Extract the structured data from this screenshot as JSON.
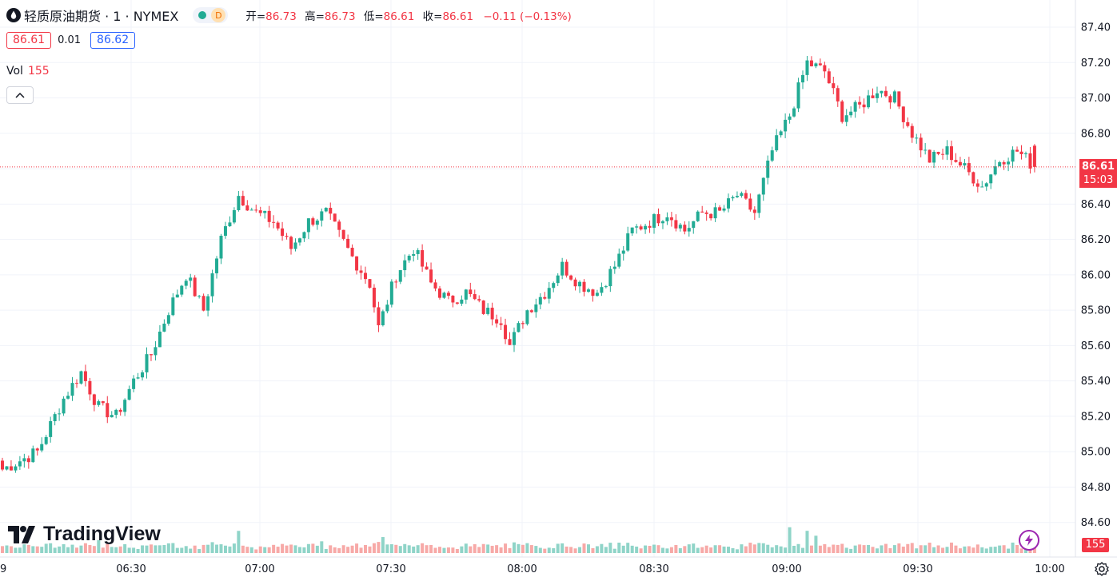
{
  "header": {
    "symbol_title": "轻质原油期货 · 1 · NYMEX",
    "timeframe_badge": "D",
    "ohlc": {
      "open_label": "开=",
      "open": "86.73",
      "high_label": "高=",
      "high": "86.73",
      "low_label": "低=",
      "low": "86.61",
      "close_label": "收=",
      "close": "86.61",
      "change": "−0.11 (−0.13%)"
    }
  },
  "quote": {
    "sell": "86.61",
    "spread": "0.01",
    "buy": "86.62"
  },
  "volume_legend": {
    "label": "Vol",
    "value": "155"
  },
  "brand": {
    "name": "TradingView"
  },
  "price_tag": {
    "price": "86.61",
    "countdown": "15:03"
  },
  "volume_tag": "155",
  "colors": {
    "up": "#22ab94",
    "down": "#f23645",
    "up_vol": "#8fd4c8",
    "down_vol": "#f7a9a7",
    "grid": "#f0f3fa"
  },
  "icons": {
    "flash": "lightning-icon",
    "settings": "gear-icon",
    "collapse": "chevron-up-icon"
  },
  "chart_data": {
    "type": "candlestick",
    "y_ticks": [
      "87.40",
      "87.20",
      "87.00",
      "86.80",
      "86.60",
      "86.40",
      "86.20",
      "86.00",
      "85.80",
      "85.60",
      "85.40",
      "85.20",
      "85.00",
      "84.80",
      "84.60"
    ],
    "y_range": [
      84.4,
      87.4
    ],
    "x_ticks": [
      "9",
      "06:30",
      "07:00",
      "07:30",
      "08:00",
      "08:30",
      "09:00",
      "09:30",
      "10:00"
    ],
    "last_price": 86.61,
    "anchors": [
      [
        0,
        84.9
      ],
      [
        8,
        85.0
      ],
      [
        14,
        85.3
      ],
      [
        18,
        85.45
      ],
      [
        22,
        85.25
      ],
      [
        26,
        85.2
      ],
      [
        30,
        85.4
      ],
      [
        34,
        85.55
      ],
      [
        38,
        85.8
      ],
      [
        42,
        86.0
      ],
      [
        46,
        85.8
      ],
      [
        50,
        86.2
      ],
      [
        54,
        86.45
      ],
      [
        58,
        86.35
      ],
      [
        62,
        86.3
      ],
      [
        66,
        86.15
      ],
      [
        70,
        86.3
      ],
      [
        74,
        86.35
      ],
      [
        80,
        86.1
      ],
      [
        84,
        85.95
      ],
      [
        86,
        85.7
      ],
      [
        90,
        86.0
      ],
      [
        94,
        86.15
      ],
      [
        98,
        85.95
      ],
      [
        102,
        85.85
      ],
      [
        106,
        85.9
      ],
      [
        110,
        85.8
      ],
      [
        114,
        85.75
      ],
      [
        116,
        85.6
      ],
      [
        120,
        85.8
      ],
      [
        124,
        85.9
      ],
      [
        128,
        86.05
      ],
      [
        132,
        85.95
      ],
      [
        136,
        85.9
      ],
      [
        140,
        86.05
      ],
      [
        144,
        86.25
      ],
      [
        148,
        86.3
      ],
      [
        152,
        86.35
      ],
      [
        156,
        86.25
      ],
      [
        160,
        86.35
      ],
      [
        164,
        86.35
      ],
      [
        168,
        86.45
      ],
      [
        172,
        86.35
      ],
      [
        176,
        86.7
      ],
      [
        180,
        86.9
      ],
      [
        184,
        87.2
      ],
      [
        188,
        87.15
      ],
      [
        192,
        86.9
      ],
      [
        196,
        86.95
      ],
      [
        200,
        87.05
      ],
      [
        204,
        87.0
      ],
      [
        208,
        86.8
      ],
      [
        212,
        86.65
      ],
      [
        216,
        86.7
      ],
      [
        220,
        86.6
      ],
      [
        224,
        86.5
      ],
      [
        228,
        86.65
      ],
      [
        232,
        86.7
      ],
      [
        236,
        86.61
      ]
    ],
    "volume_spikes": [
      [
        22,
        2.2
      ],
      [
        54,
        3.5
      ],
      [
        73,
        1.8
      ],
      [
        87,
        2.4
      ],
      [
        180,
        4.5
      ],
      [
        184,
        3.5
      ],
      [
        186,
        3.0
      ]
    ]
  }
}
